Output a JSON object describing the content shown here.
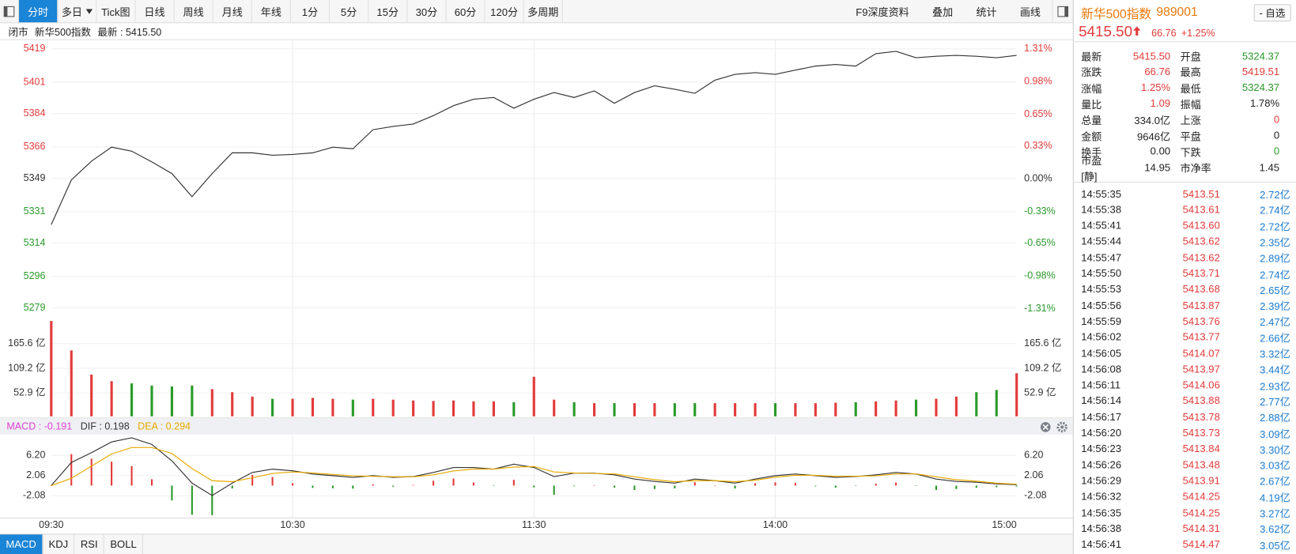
{
  "toolbar": {
    "left": [
      "分时",
      "多日",
      "Tick图",
      "日线",
      "周线",
      "月线",
      "年线",
      "1分",
      "5分",
      "15分",
      "30分",
      "60分",
      "120分",
      "多周期"
    ],
    "active": 0,
    "dropdown_index": 1,
    "right": [
      "F9深度资料",
      "叠加",
      "统计",
      "画线"
    ]
  },
  "status": [
    "闭市",
    "新华500指数",
    "最新 : 5415.50"
  ],
  "chart_data": [
    {
      "type": "line",
      "ylim": [
        5277.97,
        5419.51
      ],
      "yticks": [
        5419,
        5401,
        5384,
        5366,
        5349,
        5331,
        5314,
        5296,
        5279
      ],
      "y2lim": [
        -1.32,
        1.32
      ],
      "y2ticks": [
        {
          "value": 1.31,
          "label": "1.31%"
        },
        {
          "value": 0.98,
          "label": "0.98%"
        },
        {
          "value": 0.65,
          "label": "0.65%"
        },
        {
          "value": 0.33,
          "label": "0.33%"
        },
        {
          "value": 0,
          "label": "0.00%"
        },
        {
          "value": -0.33,
          "label": "-0.33%"
        },
        {
          "value": -0.65,
          "label": "-0.65%"
        },
        {
          "value": -0.98,
          "label": "-0.98%"
        },
        {
          "value": -1.31,
          "label": "-1.31%"
        }
      ],
      "up_color": "#e33a3a",
      "down_color": "#2a9a2a",
      "grid": true,
      "xlim": [
        0,
        240
      ],
      "x": [
        0,
        5,
        10,
        15,
        20,
        25,
        30,
        35,
        40,
        45,
        50,
        55,
        60,
        65,
        70,
        75,
        80,
        85,
        90,
        95,
        100,
        105,
        110,
        115,
        120,
        125,
        130,
        135,
        140,
        145,
        150,
        155,
        160,
        165,
        170,
        175,
        180,
        185,
        190,
        195,
        200,
        205,
        210,
        215,
        220,
        225,
        230,
        235,
        240
      ],
      "series": [
        {
          "color": "#333333",
          "values": [
            5324.0,
            5348.1,
            5358.3,
            5365.9,
            5363.7,
            5357.9,
            5351.6,
            5339.1,
            5351.6,
            5362.8,
            5362.8,
            5361.5,
            5361.9,
            5362.8,
            5365.9,
            5365.0,
            5375.3,
            5377.1,
            5378.4,
            5382.9,
            5388.3,
            5391.8,
            5392.7,
            5386.9,
            5391.8,
            5395.4,
            5392.7,
            5396.3,
            5389.6,
            5395.4,
            5399.0,
            5397.2,
            5395.0,
            5402.1,
            5405.2,
            5406.1,
            5405.2,
            5407.5,
            5409.7,
            5410.6,
            5409.7,
            5416.4,
            5417.7,
            5414.2,
            5415.0,
            5415.5,
            5415.0,
            5414.2,
            5415.5
          ]
        }
      ]
    },
    {
      "type": "bar",
      "ylim": [
        0,
        218
      ],
      "yticks": [
        {
          "value": 165.6,
          "label": "165.6 亿"
        },
        {
          "value": 109.2,
          "label": "109.2 亿"
        },
        {
          "value": 52.9,
          "label": "52.9 亿"
        }
      ],
      "up_color": "#e33a3a",
      "down_color": "#2a9a2a",
      "grid": true,
      "xlim": [
        0,
        240
      ],
      "x": [
        0,
        5,
        10,
        15,
        20,
        25,
        30,
        35,
        40,
        45,
        50,
        55,
        60,
        65,
        70,
        75,
        80,
        85,
        90,
        95,
        100,
        105,
        110,
        115,
        120,
        125,
        130,
        135,
        140,
        145,
        150,
        155,
        160,
        165,
        170,
        175,
        180,
        185,
        190,
        195,
        200,
        205,
        210,
        215,
        220,
        225,
        230,
        235,
        240
      ],
      "values": [
        217,
        150,
        95,
        80,
        75,
        70,
        68,
        70,
        62,
        55,
        45,
        40,
        40,
        42,
        40,
        38,
        40,
        38,
        36,
        35,
        36,
        34,
        34,
        32,
        90,
        38,
        32,
        30,
        30,
        30,
        30,
        30,
        30,
        30,
        30,
        30,
        30,
        30,
        30,
        31,
        32,
        34,
        36,
        38,
        40,
        45,
        55,
        60,
        98
      ]
    },
    {
      "type": "line",
      "ylim": [
        -6.3,
        9.8
      ],
      "yticks": [
        {
          "value": 6.2,
          "label": "6.20"
        },
        2.06,
        -2.08
      ],
      "grid": true,
      "xlim": [
        0,
        240
      ],
      "xticks": [
        {
          "value": 0,
          "label": "09:30"
        },
        {
          "value": 60,
          "label": "10:30"
        },
        {
          "value": 120,
          "label": "11:30"
        },
        {
          "value": 180,
          "label": "14:00"
        },
        {
          "value": 240,
          "label": "15:00"
        }
      ],
      "up_color": "#e33a3a",
      "down_color": "#2a9a2a",
      "x": [
        0,
        5,
        10,
        15,
        20,
        25,
        30,
        35,
        40,
        45,
        50,
        55,
        60,
        65,
        70,
        75,
        80,
        85,
        90,
        95,
        100,
        105,
        110,
        115,
        120,
        125,
        130,
        135,
        140,
        145,
        150,
        155,
        160,
        165,
        170,
        175,
        180,
        185,
        190,
        195,
        200,
        205,
        210,
        215,
        220,
        225,
        230,
        235,
        240
      ],
      "series": [
        {
          "label": "MACD : -0.191",
          "color": "#e040d0",
          "style": "bar",
          "values": [
            0,
            6.46,
            5.52,
            4.92,
            4.0,
            1.3,
            -3.06,
            -5.98,
            -6.06,
            -0.58,
            2.2,
            1.76,
            0.48,
            -0.46,
            -0.54,
            -0.62,
            0.26,
            -0.22,
            0.12,
            1.0,
            1.44,
            0.64,
            -0.04,
            1.18,
            -0.36,
            -1.88,
            -0.12,
            0.08,
            -0.4,
            -0.9,
            -0.7,
            -0.58,
            0.7,
            0.02,
            -0.58,
            0.5,
            0.66,
            0.54,
            -0.14,
            -0.42,
            -0.08,
            0.4,
            0.6,
            -0.06,
            -0.9,
            -0.7,
            -0.44,
            -0.32,
            -0.191
          ]
        },
        {
          "label": "DIF : 0.198",
          "color": "#333333",
          "style": "line",
          "values": [
            0,
            4.73,
            6.76,
            8.96,
            9.8,
            8.45,
            5.07,
            0.51,
            -2.03,
            0.51,
            2.7,
            3.38,
            3.04,
            2.37,
            2.03,
            1.69,
            2.03,
            1.69,
            1.86,
            2.7,
            3.72,
            3.72,
            3.38,
            4.39,
            3.72,
            1.86,
            2.54,
            2.54,
            2.2,
            1.35,
            0.85,
            0.51,
            1.35,
            1.01,
            0.51,
            1.35,
            2.03,
            2.37,
            2.03,
            1.69,
            1.86,
            2.2,
            2.7,
            2.37,
            1.35,
            0.85,
            0.68,
            0.34,
            0.198
          ]
        },
        {
          "label": "DEA : 0.294",
          "color": "#e8a800",
          "style": "line",
          "values": [
            0,
            1.5,
            4.0,
            6.5,
            7.8,
            7.8,
            6.6,
            3.5,
            1.0,
            0.8,
            1.6,
            2.5,
            2.8,
            2.6,
            2.3,
            2.0,
            1.9,
            1.8,
            1.8,
            2.2,
            3.0,
            3.4,
            3.4,
            3.8,
            3.9,
            2.8,
            2.6,
            2.5,
            2.4,
            1.8,
            1.2,
            0.8,
            1.0,
            1.0,
            0.8,
            1.1,
            1.7,
            2.1,
            2.1,
            1.9,
            1.9,
            2.0,
            2.4,
            2.4,
            1.8,
            1.2,
            0.9,
            0.5,
            0.294
          ]
        }
      ]
    }
  ],
  "bottom_tabs": [
    "MACD",
    "KDJ",
    "RSI",
    "BOLL"
  ],
  "bottom_active": 0,
  "sidebar": {
    "name": "新华500指数",
    "code": "989001",
    "button": "- 自选",
    "price": "5415.50",
    "change": "66.76",
    "change_pct": "+1.25%",
    "color": "#e33a3a",
    "quote": [
      [
        {
          "label": "最新",
          "value": "5415.50",
          "color": "#e33a3a"
        },
        {
          "label": "开盘",
          "value": "5324.37",
          "color": "#2a9a2a"
        }
      ],
      [
        {
          "label": "涨跌",
          "value": "66.76",
          "color": "#e33a3a"
        },
        {
          "label": "最高",
          "value": "5419.51",
          "color": "#e33a3a"
        }
      ],
      [
        {
          "label": "涨幅",
          "value": "1.25%",
          "color": "#e33a3a"
        },
        {
          "label": "最低",
          "value": "5324.37",
          "color": "#2a9a2a"
        }
      ],
      [
        {
          "label": "量比",
          "value": "1.09",
          "color": "#e33a3a"
        },
        {
          "label": "振幅",
          "value": "1.78%",
          "color": "#222222"
        }
      ],
      [
        {
          "label": "总量",
          "value": "334.0亿",
          "color": "#222222"
        },
        {
          "label": "上涨",
          "value": "0",
          "color": "#e33a3a"
        }
      ],
      [
        {
          "label": "金额",
          "value": "9646亿",
          "color": "#222222"
        },
        {
          "label": "平盘",
          "value": "0",
          "color": "#222222"
        }
      ],
      [
        {
          "label": "换手",
          "value": "0.00",
          "color": "#222222"
        },
        {
          "label": "下跌",
          "value": "0",
          "color": "#2a9a2a"
        }
      ],
      [
        {
          "label": "市盈[静]",
          "value": "14.95",
          "color": "#222222"
        },
        {
          "label": "市净率",
          "value": "1.45",
          "color": "#222222"
        }
      ]
    ],
    "ticks_price_color": "#e33a3a",
    "ticks_vol_color": "#1a7ad0",
    "ticks": [
      [
        "14:55:35",
        "5413.51",
        "2.72亿"
      ],
      [
        "14:55:38",
        "5413.61",
        "2.74亿"
      ],
      [
        "14:55:41",
        "5413.60",
        "2.72亿"
      ],
      [
        "14:55:44",
        "5413.62",
        "2.35亿"
      ],
      [
        "14:55:47",
        "5413.62",
        "2.89亿"
      ],
      [
        "14:55:50",
        "5413.71",
        "2.74亿"
      ],
      [
        "14:55:53",
        "5413.68",
        "2.65亿"
      ],
      [
        "14:55:56",
        "5413.87",
        "2.39亿"
      ],
      [
        "14:55:59",
        "5413.76",
        "2.47亿"
      ],
      [
        "14:56:02",
        "5413.77",
        "2.66亿"
      ],
      [
        "14:56:05",
        "5414.07",
        "3.32亿"
      ],
      [
        "14:56:08",
        "5413.97",
        "3.44亿"
      ],
      [
        "14:56:11",
        "5414.06",
        "2.93亿"
      ],
      [
        "14:56:14",
        "5413.88",
        "2.77亿"
      ],
      [
        "14:56:17",
        "5413.78",
        "2.88亿"
      ],
      [
        "14:56:20",
        "5413.73",
        "3.09亿"
      ],
      [
        "14:56:23",
        "5413.84",
        "3.30亿"
      ],
      [
        "14:56:26",
        "5413.48",
        "3.03亿"
      ],
      [
        "14:56:29",
        "5413.91",
        "2.67亿"
      ],
      [
        "14:56:32",
        "5414.25",
        "4.19亿"
      ],
      [
        "14:56:35",
        "5414.25",
        "3.27亿"
      ],
      [
        "14:56:38",
        "5414.31",
        "3.62亿"
      ],
      [
        "14:56:41",
        "5414.47",
        "3.05亿"
      ]
    ]
  }
}
